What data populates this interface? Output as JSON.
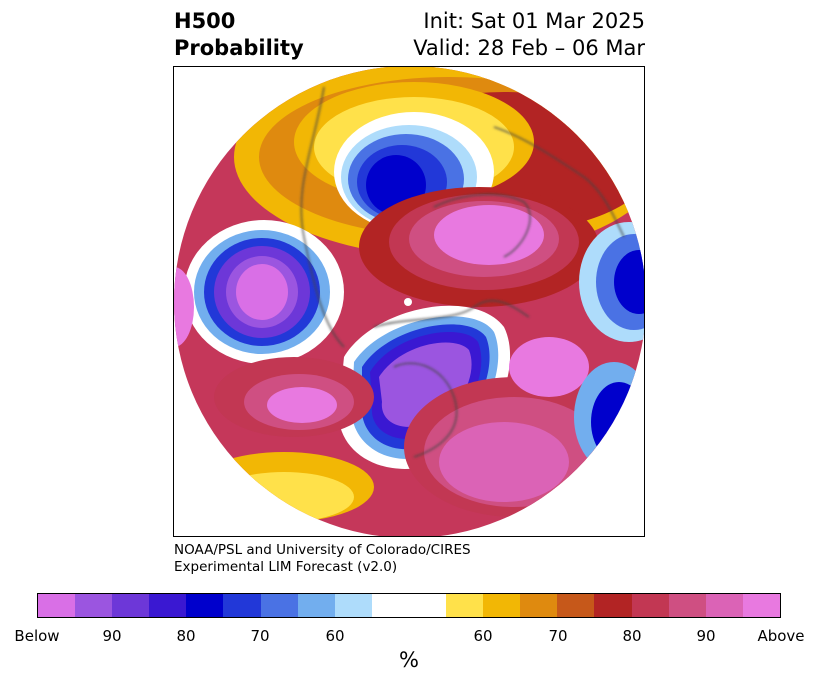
{
  "title": {
    "left_line1": "H500",
    "left_line2": "Probability",
    "right_line1": "Init: Sat 01 Mar 2025",
    "right_line2": "Valid: 28 Feb – 06 Mar"
  },
  "credit": {
    "line1": "NOAA/PSL and University of Colorado/CIRES",
    "line2": "Experimental LIM Forecast (v2.0)"
  },
  "colorbar": {
    "colors": [
      "#d96fe6",
      "#9b55e0",
      "#6d37d8",
      "#3a18d2",
      "#0000cc",
      "#2238d8",
      "#4a72e4",
      "#72aeee",
      "#aedcfb",
      "#ffffff",
      "#ffffff",
      "#ffe14a",
      "#f2b705",
      "#df8a0f",
      "#c6581a",
      "#b22424",
      "#c23753",
      "#cf4f82",
      "#db63b6",
      "#e879e0"
    ],
    "labels": [
      "Below",
      "90",
      "80",
      "70",
      "60",
      "60",
      "70",
      "80",
      "90",
      "Above"
    ],
    "unit": "%"
  }
}
